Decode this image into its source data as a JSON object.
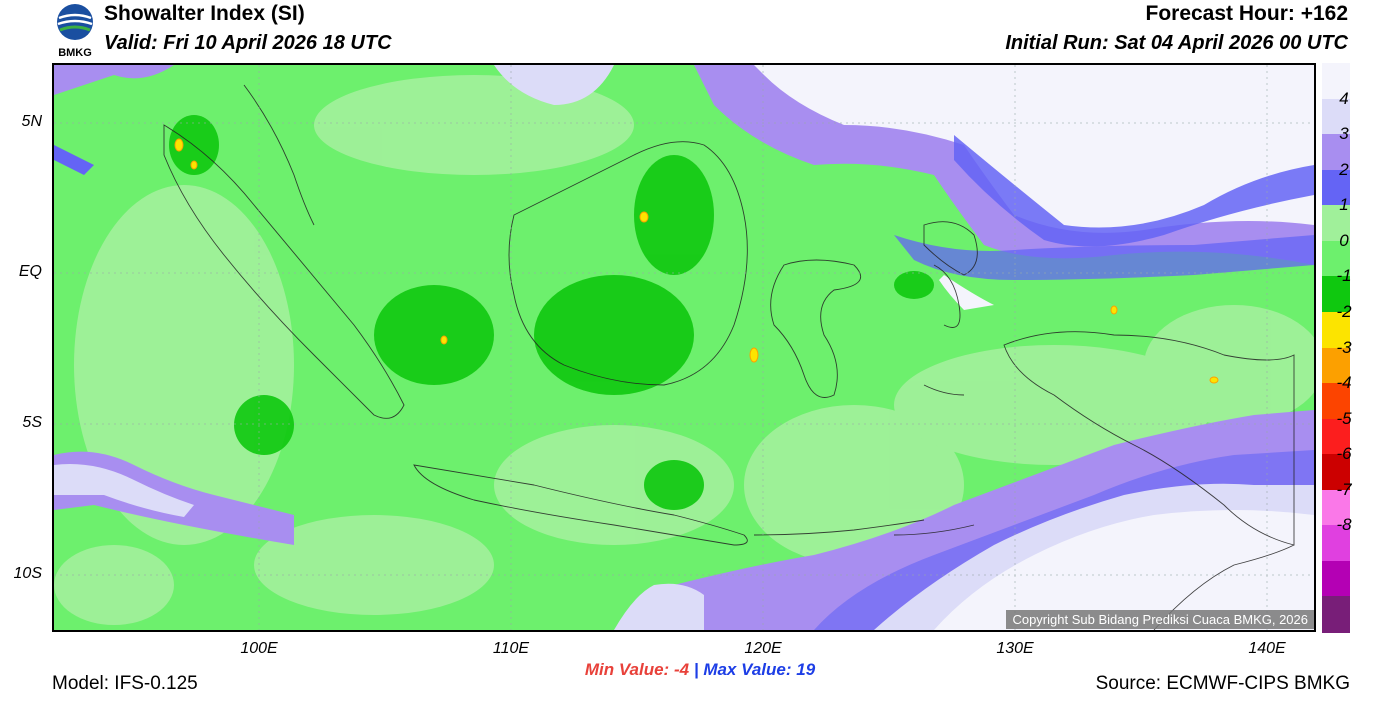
{
  "header": {
    "title": "Showalter Index (SI)",
    "valid": "Valid: Fri 10 April 2026 18 UTC",
    "forecast_hour": "Forecast Hour: +162",
    "initial_run": "Initial Run: Sat 04 April 2026 00 UTC"
  },
  "logo": {
    "text": "BMKG"
  },
  "map": {
    "lat_labels": [
      "5N",
      "EQ",
      "5S",
      "10S"
    ],
    "lon_labels": [
      "100E",
      "110E",
      "120E",
      "130E",
      "140E"
    ],
    "copyright": "Copyright Sub Bidang Prediksi Cuaca BMKG, 2026"
  },
  "legend": {
    "colors": [
      "#f4f4fc",
      "#dcdcf8",
      "#a88ef0",
      "#6464f5",
      "#a0f09a",
      "#6df06d",
      "#0fc80f",
      "#fce400",
      "#fca000",
      "#fc4400",
      "#fc1e1e",
      "#cc0000",
      "#fa78e8",
      "#e040e0",
      "#b400b4",
      "#781e78"
    ],
    "labels": [
      "4",
      "3",
      "2",
      "1",
      "0",
      "-1",
      "-2",
      "-3",
      "-4",
      "-5",
      "-6",
      "-7",
      "-8"
    ]
  },
  "stats": {
    "min_label": "Min Value:",
    "min_value": "-4",
    "separator": "|",
    "max_label": "Max Value:",
    "max_value": "19"
  },
  "footer": {
    "model": "Model: IFS-0.125",
    "source": "Source: ECMWF-CIPS BMKG"
  }
}
